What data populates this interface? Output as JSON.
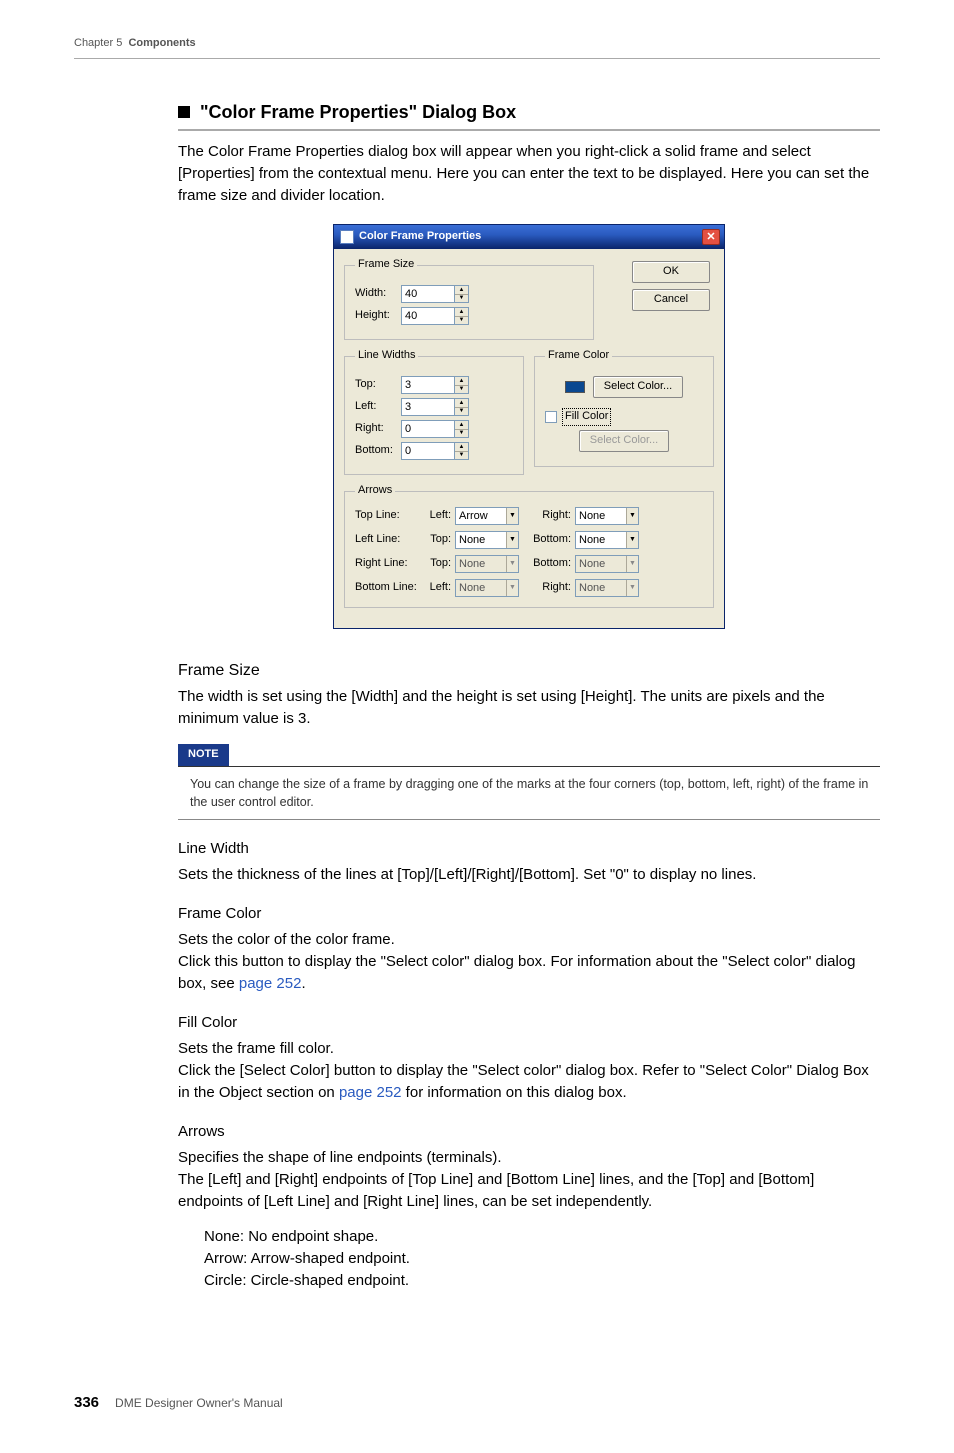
{
  "header": {
    "chapter": "Chapter 5",
    "title": "Components"
  },
  "section": {
    "title": "\"Color Frame Properties\" Dialog Box",
    "intro": "The Color Frame Properties dialog box will appear when you right-click a solid frame and select [Properties] from the contextual menu. Here you can enter the text to be displayed. Here you can set the frame size and divider location."
  },
  "dialog": {
    "title": "Color Frame Properties",
    "ok": "OK",
    "cancel": "Cancel",
    "frameSize": {
      "legend": "Frame Size",
      "widthLabel": "Width:",
      "widthValue": "40",
      "heightLabel": "Height:",
      "heightValue": "40"
    },
    "lineWidths": {
      "legend": "Line Widths",
      "topLabel": "Top:",
      "topValue": "3",
      "leftLabel": "Left:",
      "leftValue": "3",
      "rightLabel": "Right:",
      "rightValue": "0",
      "bottomLabel": "Bottom:",
      "bottomValue": "0"
    },
    "frameColor": {
      "legend": "Frame Color",
      "selectBtn": "Select Color...",
      "swatch": "#0a4890",
      "fillChk": "Fill Color",
      "fillSelectBtn": "Select Color..."
    },
    "arrows": {
      "legend": "Arrows",
      "rows": [
        {
          "name": "Top Line:",
          "a": "Left:",
          "aval": "Arrow",
          "b": "Right:",
          "bval": "None",
          "disabled": false
        },
        {
          "name": "Left Line:",
          "a": "Top:",
          "aval": "None",
          "b": "Bottom:",
          "bval": "None",
          "disabled": false
        },
        {
          "name": "Right Line:",
          "a": "Top:",
          "aval": "None",
          "b": "Bottom:",
          "bval": "None",
          "disabled": true
        },
        {
          "name": "Bottom Line:",
          "a": "Left:",
          "aval": "None",
          "b": "Right:",
          "bval": "None",
          "disabled": true
        }
      ]
    }
  },
  "body": {
    "frameSize": {
      "h": "Frame Size",
      "p": "The width is set using the [Width] and the height is set using [Height]. The units are pixels and the minimum value is 3."
    },
    "note": {
      "tag": "NOTE",
      "p": "You can change the size of a frame by dragging one of the marks at the four corners (top, bottom, left, right) of the frame in the user control editor."
    },
    "lineWidth": {
      "h": "Line Width",
      "p": "Sets the thickness of the lines at [Top]/[Left]/[Right]/[Bottom]. Set \"0\" to display no lines."
    },
    "frameColor": {
      "h": "Frame Color",
      "p1": "Sets the color of the color frame.",
      "p2a": "Click this button to display the \"Select color\" dialog box. For information about the \"Select color\" dialog box, see ",
      "link": "page 252",
      "p2b": "."
    },
    "fillColor": {
      "h": "Fill Color",
      "p1": "Sets the frame fill color.",
      "p2a": "Click the [Select Color] button to display the \"Select color\" dialog box. Refer to \"Select Color\" Dialog Box in the Object section on ",
      "link": "page 252",
      "p2b": " for information on this dialog box."
    },
    "arrowsSec": {
      "h": "Arrows",
      "p1": "Specifies the shape of line endpoints (terminals).",
      "p2": "The [Left] and [Right] endpoints of [Top Line] and [Bottom Line] lines, and the [Top] and [Bottom] endpoints of [Left Line] and [Right Line] lines, can be set independently.",
      "l1": "None: No endpoint shape.",
      "l2": "Arrow: Arrow-shaped endpoint.",
      "l3": "Circle: Circle-shaped endpoint."
    }
  },
  "footer": {
    "page": "336",
    "manual": "DME Designer Owner's Manual"
  }
}
